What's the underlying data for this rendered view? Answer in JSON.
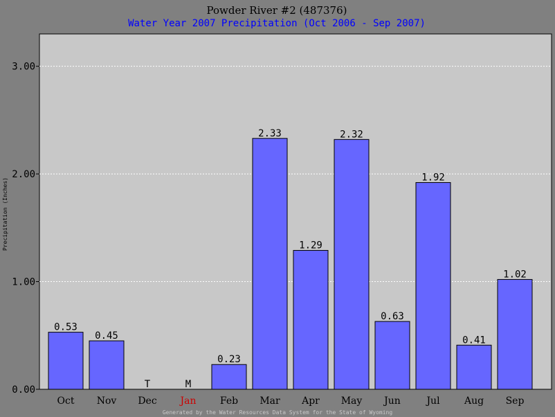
{
  "chart_data": {
    "type": "bar",
    "title": "Powder River #2 (487376)",
    "subtitle": "Water Year 2007 Precipitation (Oct 2006 - Sep 2007)",
    "ylabel": "Precipitation (Inches)",
    "xlabel": "",
    "ylim": [
      0,
      3.3
    ],
    "yticks": [
      "0.00",
      "1.00",
      "2.00",
      "3.00"
    ],
    "ytick_values": [
      0,
      1,
      2,
      3
    ],
    "grid": true,
    "categories": [
      "Oct",
      "Nov",
      "Dec",
      "Jan",
      "Feb",
      "Mar",
      "Apr",
      "May",
      "Jun",
      "Jul",
      "Aug",
      "Sep"
    ],
    "values": [
      0.53,
      0.45,
      0,
      0,
      0.23,
      2.33,
      1.29,
      2.32,
      0.63,
      1.92,
      0.41,
      1.02
    ],
    "labels": [
      "0.53",
      "0.45",
      "T",
      "M",
      "0.23",
      "2.33",
      "1.29",
      "2.32",
      "0.63",
      "1.92",
      "0.41",
      "1.02"
    ],
    "category_colors": [
      "#000000",
      "#000000",
      "#000000",
      "#cc0000",
      "#000000",
      "#000000",
      "#000000",
      "#000000",
      "#000000",
      "#000000",
      "#000000",
      "#000000"
    ],
    "label_colors": [
      "#000000",
      "#000000",
      "#000000",
      "#cc0000",
      "#000000",
      "#000000",
      "#000000",
      "#000000",
      "#000000",
      "#000000",
      "#000000",
      "#000000"
    ],
    "bar_color": "#6666ff",
    "plot_background": "#c8c8c8",
    "page_background": "#808080",
    "footer": "Generated by the Water Resources Data System for the State of Wyoming"
  }
}
